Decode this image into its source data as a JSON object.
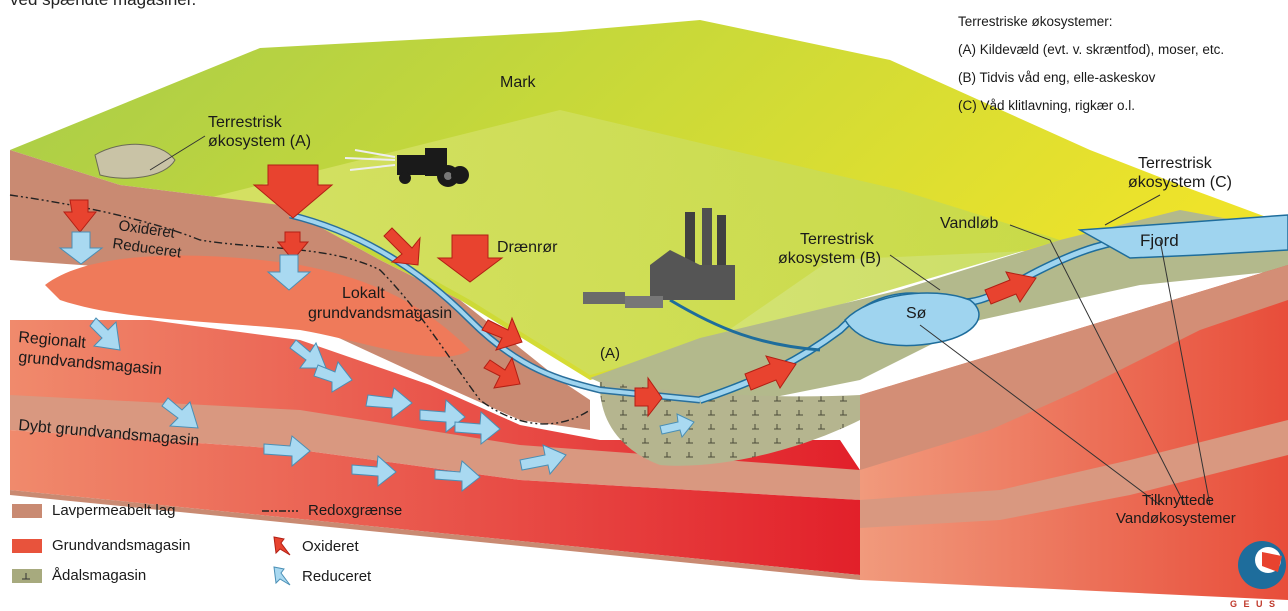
{
  "header_fragment": "ved spændte magasiner.",
  "ecosystem_panel": {
    "title": "Terrestriske økosystemer:",
    "items": [
      "(A) Kildevæld (evt. v. skræntfod), moser, etc.",
      "(B) Tidvis våd eng, elle-askeskov",
      "(C) Våd klitlavning, rigkær o.l."
    ]
  },
  "labels": {
    "mark": "Mark",
    "eco_a_line1": "Terrestrisk",
    "eco_a_line2": "økosystem (A)",
    "oxideret": "Oxideret",
    "reduceret": "Reduceret",
    "draenror": "Drænrør",
    "lokalt_line1": "Lokalt",
    "lokalt_line2": "grundvandsmagasin",
    "regionalt_line1": "Regionalt",
    "regionalt_line2": "grundvandsmagasin",
    "dybt": "Dybt grundvandsmagasin",
    "eco_b_line1": "Terrestrisk",
    "eco_b_line2": "økosystem (B)",
    "vandlob": "Vandløb",
    "fjord": "Fjord",
    "eco_c_line1": "Terrestrisk",
    "eco_c_line2": "økosystem (C)",
    "so": "Sø",
    "a_marker": "(A)",
    "tilknyttede_line1": "Tilknyttede",
    "tilknyttede_line2": "Vandøkosystemer",
    "logo_text": "G E U S"
  },
  "legend": {
    "lavpermeabelt": "Lavpermeabelt lag",
    "grundvandsmagasin": "Grundvandsmagasin",
    "adalsmagasin": "Ådalsmagasin",
    "redox": "Redoxgrænse",
    "oxideret": "Oxideret",
    "reduceret": "Reduceret"
  },
  "colors": {
    "low_perm": "#c98a72",
    "aquifer": "#e8533c",
    "valley_aquifer": "#a7aa7e",
    "field_green": "#8fbf2e",
    "field_yellow": "#e6e62e",
    "water": "#9fd4ef",
    "oxidized_arrow": "#e8432f",
    "reduced_arrow": "#a9d9f1"
  }
}
